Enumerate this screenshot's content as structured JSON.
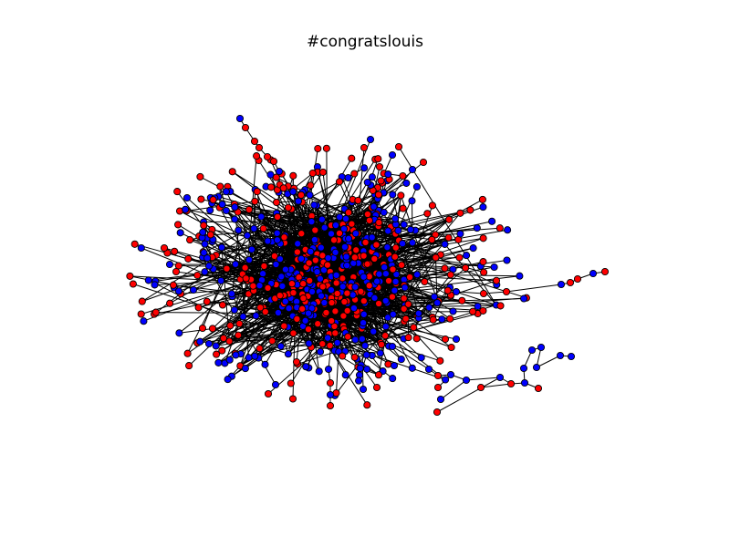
{
  "figure": {
    "title": "#congratslouis"
  },
  "graph": {
    "type": "network",
    "node_colors": {
      "red": "#ff0000",
      "blue": "#0000ff"
    },
    "edge_color": "#000000",
    "node_outline_color": "#000000"
  }
}
